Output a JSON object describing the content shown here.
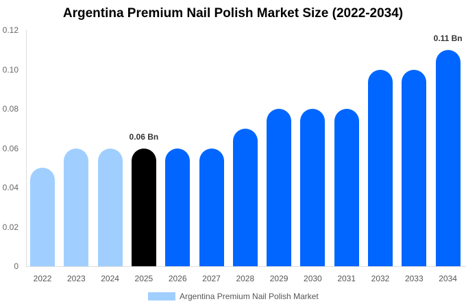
{
  "chart_data": {
    "type": "bar",
    "title": "Argentina Premium Nail Polish Market Size (2022-2034)",
    "xlabel": "",
    "ylabel": "",
    "ylim": [
      0,
      0.12
    ],
    "yticks": [
      "0",
      "0.02",
      "0.04",
      "0.06",
      "0.08",
      "0.10",
      "0.12"
    ],
    "grid": false,
    "legend_position": "bottom",
    "categories": [
      "2022",
      "2023",
      "2024",
      "2025",
      "2026",
      "2027",
      "2028",
      "2029",
      "2030",
      "2031",
      "2032",
      "2033",
      "2034"
    ],
    "series": [
      {
        "name": "Argentina Premium Nail Polish Market",
        "values": [
          0.05,
          0.06,
          0.06,
          0.06,
          0.06,
          0.06,
          0.07,
          0.08,
          0.08,
          0.08,
          0.1,
          0.1,
          0.11
        ]
      }
    ],
    "bar_colors": [
      "#a0cfff",
      "#a0cfff",
      "#a0cfff",
      "#000000",
      "#0066ff",
      "#0066ff",
      "#0066ff",
      "#0066ff",
      "#0066ff",
      "#0066ff",
      "#0066ff",
      "#0066ff",
      "#0066ff"
    ],
    "annotations": [
      {
        "category": "2025",
        "text": "0.06 Bn"
      },
      {
        "category": "2034",
        "text": "0.11 Bn"
      }
    ]
  },
  "legend": {
    "label": "Argentina Premium Nail Polish Market",
    "color": "#a0cfff"
  }
}
